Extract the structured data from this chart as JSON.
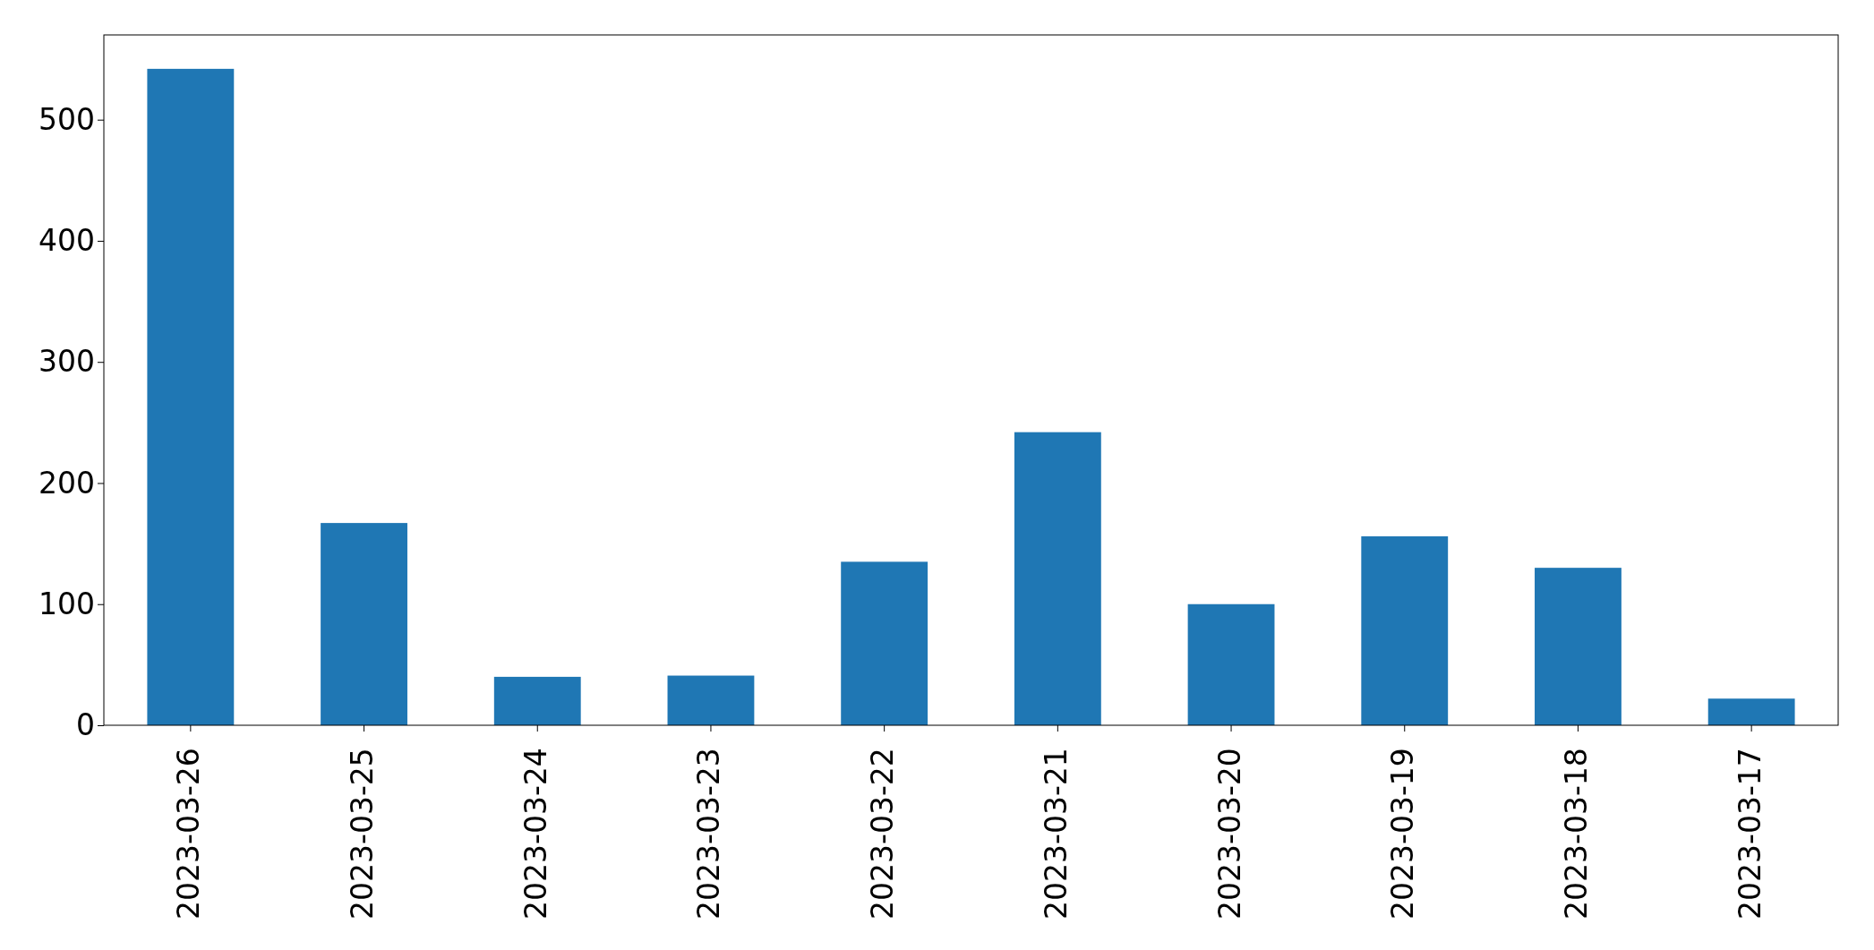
{
  "chart_data": {
    "type": "bar",
    "categories": [
      "2023-03-26",
      "2023-03-25",
      "2023-03-24",
      "2023-03-23",
      "2023-03-22",
      "2023-03-21",
      "2023-03-20",
      "2023-03-19",
      "2023-03-18",
      "2023-03-17"
    ],
    "values": [
      542,
      167,
      40,
      41,
      135,
      242,
      100,
      156,
      130,
      22
    ],
    "color": "#1f77b4",
    "ylim": [
      0,
      570
    ],
    "yticks": [
      0,
      100,
      200,
      300,
      400,
      500
    ],
    "grid": false
  }
}
